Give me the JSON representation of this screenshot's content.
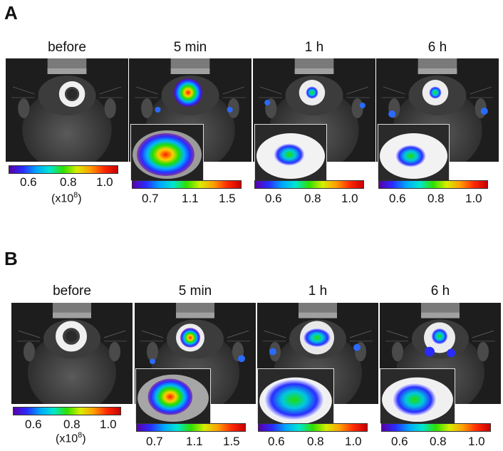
{
  "panels": [
    {
      "letter": "A",
      "timepoints": [
        "before",
        "5 min",
        "1 h",
        "6 h"
      ],
      "scales": [
        {
          "ticks": [
            "0.6",
            "0.8",
            "1.0"
          ],
          "unit_base": "(x10",
          "unit_exp": "8",
          "unit_close": ")"
        },
        {
          "ticks": [
            "0.7",
            "1.1",
            "1.5"
          ]
        },
        {
          "ticks": [
            "0.6",
            "0.8",
            "1.0"
          ]
        },
        {
          "ticks": [
            "0.6",
            "0.8",
            "1.0"
          ]
        }
      ]
    },
    {
      "letter": "B",
      "timepoints": [
        "before",
        "5 min",
        "1 h",
        "6 h"
      ],
      "scales": [
        {
          "ticks": [
            "0.6",
            "0.8",
            "1.0"
          ],
          "unit_base": "(x10",
          "unit_exp": "8",
          "unit_close": ")"
        },
        {
          "ticks": [
            "0.7",
            "1.1",
            "1.5"
          ]
        },
        {
          "ticks": [
            "0.6",
            "0.8",
            "1.0"
          ]
        },
        {
          "ticks": [
            "0.6",
            "0.8",
            "1.0"
          ]
        }
      ]
    }
  ],
  "colors": {
    "background": "#1d1d1d",
    "colorbar": [
      "#5a00a8",
      "#2a2cff",
      "#00a6ff",
      "#00e6d0",
      "#2fe000",
      "#d8ee00",
      "#ff9d00",
      "#ff2a00",
      "#c80000"
    ]
  }
}
